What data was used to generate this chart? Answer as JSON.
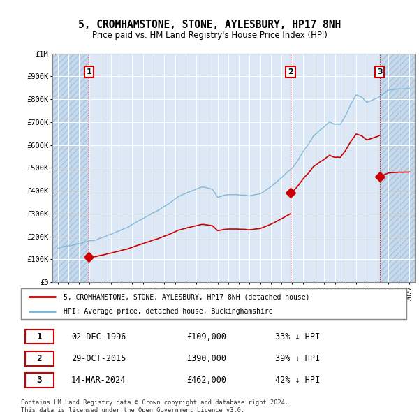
{
  "title": "5, CROMHAMSTONE, STONE, AYLESBURY, HP17 8NH",
  "subtitle": "Price paid vs. HM Land Registry's House Price Index (HPI)",
  "xmin": 1993.5,
  "xmax": 2027.5,
  "ymin": 0,
  "ymax": 1000000,
  "yticks": [
    0,
    100000,
    200000,
    300000,
    400000,
    500000,
    600000,
    700000,
    800000,
    900000,
    1000000
  ],
  "ytick_labels": [
    "£0",
    "£100K",
    "£200K",
    "£300K",
    "£400K",
    "£500K",
    "£600K",
    "£700K",
    "£800K",
    "£900K",
    "£1M"
  ],
  "xticks": [
    1994,
    1995,
    1996,
    1997,
    1998,
    1999,
    2000,
    2001,
    2002,
    2003,
    2004,
    2005,
    2006,
    2007,
    2008,
    2009,
    2010,
    2011,
    2012,
    2013,
    2014,
    2015,
    2016,
    2017,
    2018,
    2019,
    2020,
    2021,
    2022,
    2023,
    2024,
    2025,
    2026,
    2027
  ],
  "hpi_color": "#7ab3d4",
  "price_color": "#cc0000",
  "marker_color": "#cc0000",
  "vline_color": "#cc0000",
  "background_plot": "#dce8f5",
  "hatch_bg": "#c5d8ec",
  "grid_color": "#ffffff",
  "purchases": [
    {
      "year": 1996.92,
      "price": 109000,
      "label": "1"
    },
    {
      "year": 2015.83,
      "price": 390000,
      "label": "2"
    },
    {
      "year": 2024.2,
      "price": 462000,
      "label": "3"
    }
  ],
  "legend_property_label": "5, CROMHAMSTONE, STONE, AYLESBURY, HP17 8NH (detached house)",
  "legend_hpi_label": "HPI: Average price, detached house, Buckinghamshire",
  "table_rows": [
    {
      "num": "1",
      "date": "02-DEC-1996",
      "price": "£109,000",
      "hpi": "33% ↓ HPI"
    },
    {
      "num": "2",
      "date": "29-OCT-2015",
      "price": "£390,000",
      "hpi": "39% ↓ HPI"
    },
    {
      "num": "3",
      "date": "14-MAR-2024",
      "price": "£462,000",
      "hpi": "42% ↓ HPI"
    }
  ],
  "footnote": "Contains HM Land Registry data © Crown copyright and database right 2024.\nThis data is licensed under the Open Government Licence v3.0."
}
